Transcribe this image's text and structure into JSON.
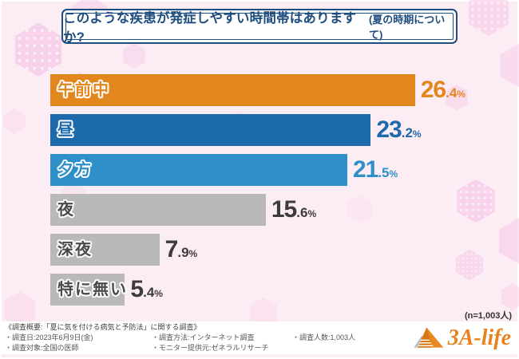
{
  "title": {
    "main": "このような疾患が発症しやすい時間帯はありますか?",
    "sub": "(夏の時期について)"
  },
  "chart_data": {
    "type": "bar",
    "orientation": "horizontal",
    "categories": [
      "午前中",
      "昼",
      "夕方",
      "夜",
      "深夜",
      "特に無い"
    ],
    "values": [
      26.4,
      23.2,
      21.5,
      15.6,
      7.9,
      5.4
    ],
    "unit": "%",
    "xlim": [
      0,
      30
    ],
    "grid": false,
    "legend": "none",
    "bar_colors": [
      "#e1871d",
      "#1c69ac",
      "#2e8fc9",
      "#b9b9b9",
      "#b9b9b9",
      "#b9b9b9"
    ],
    "category_label_colors": [
      "#e1871d",
      "#1c69ac",
      "#2e8fc9",
      "#4a4a4a",
      "#4a4a4a",
      "#4a4a4a"
    ],
    "value_label_colors": [
      "#e1871d",
      "#1c69ac",
      "#2e8fc9",
      "#3c3c3c",
      "#3c3c3c",
      "#3c3c3c"
    ],
    "sample_note": "(n=1,003人)"
  },
  "footer": {
    "overview": "《調査概要:「夏に気を付ける病気と予防法」に関する調査》",
    "items": [
      "・調査日:2023年6月9日(金)",
      "・調査方法:インターネット調査",
      "・調査人数:1,003人",
      "・調査対象:全国の医師",
      "・モニター提供元:ゼネラルリサーチ"
    ],
    "logo_text": "3A-life"
  },
  "colors": {
    "accent_navy": "#1e4c7e",
    "accent_orange": "#e1871d",
    "background_pink": "#fcecf3",
    "hexagon_pink": "#f6c9e7",
    "logo_orange": "#e8821e"
  }
}
